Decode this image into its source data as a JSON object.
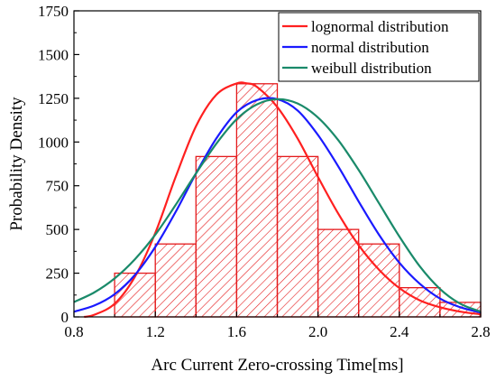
{
  "chart_data": {
    "type": "bar",
    "xlabel": "Arc Current Zero-crossing Time[ms]",
    "ylabel": "Probability Density",
    "xlim": [
      0.8,
      2.8
    ],
    "ylim": [
      0,
      1750
    ],
    "xticks": [
      0.8,
      1.2,
      1.6,
      2.0,
      2.4,
      2.8
    ],
    "yticks": [
      0,
      250,
      500,
      750,
      1000,
      1250,
      1500,
      1750
    ],
    "xtick_labels": [
      "0.8",
      "1.2",
      "1.6",
      "2.0",
      "2.4",
      "2.8"
    ],
    "ytick_labels": [
      "0",
      "250",
      "500",
      "750",
      "1000",
      "1250",
      "1500",
      "1750"
    ],
    "histogram": {
      "bin_edges": [
        1.0,
        1.2,
        1.4,
        1.6,
        1.8,
        2.0,
        2.2,
        2.4,
        2.6,
        2.8
      ],
      "values": [
        250,
        417,
        917,
        1333,
        917,
        500,
        417,
        167,
        83
      ],
      "color": "#e41a1c",
      "fill": "hatched"
    },
    "legend": {
      "position": "top-right"
    },
    "series": [
      {
        "name": "lognormal distribution",
        "color": "#ff2020",
        "x": [
          0.85,
          0.9,
          1.0,
          1.1,
          1.2,
          1.3,
          1.4,
          1.5,
          1.6,
          1.65,
          1.7,
          1.8,
          1.9,
          2.0,
          2.1,
          2.2,
          2.3,
          2.4,
          2.5,
          2.6,
          2.7,
          2.8
        ],
        "values": [
          0,
          12,
          75,
          230,
          480,
          800,
          1090,
          1270,
          1335,
          1335,
          1315,
          1200,
          1020,
          800,
          590,
          410,
          270,
          165,
          95,
          55,
          30,
          15
        ]
      },
      {
        "name": "normal distribution",
        "color": "#1a1aff",
        "x": [
          0.8,
          0.9,
          1.0,
          1.1,
          1.2,
          1.3,
          1.4,
          1.5,
          1.6,
          1.7,
          1.8,
          1.9,
          2.0,
          2.1,
          2.2,
          2.3,
          2.4,
          2.5,
          2.6,
          2.7,
          2.8
        ],
        "values": [
          30,
          65,
          130,
          240,
          400,
          600,
          820,
          1020,
          1170,
          1240,
          1245,
          1180,
          1040,
          860,
          660,
          470,
          310,
          190,
          105,
          55,
          25
        ]
      },
      {
        "name": "weibull distribution",
        "color": "#1a8a6a",
        "x": [
          0.8,
          0.9,
          1.0,
          1.1,
          1.2,
          1.3,
          1.4,
          1.5,
          1.6,
          1.7,
          1.8,
          1.9,
          2.0,
          2.1,
          2.2,
          2.3,
          2.4,
          2.5,
          2.6,
          2.7,
          2.8
        ],
        "values": [
          85,
          140,
          220,
          330,
          470,
          640,
          820,
          990,
          1130,
          1215,
          1245,
          1220,
          1140,
          1010,
          840,
          650,
          460,
          290,
          160,
          75,
          30
        ]
      }
    ]
  }
}
